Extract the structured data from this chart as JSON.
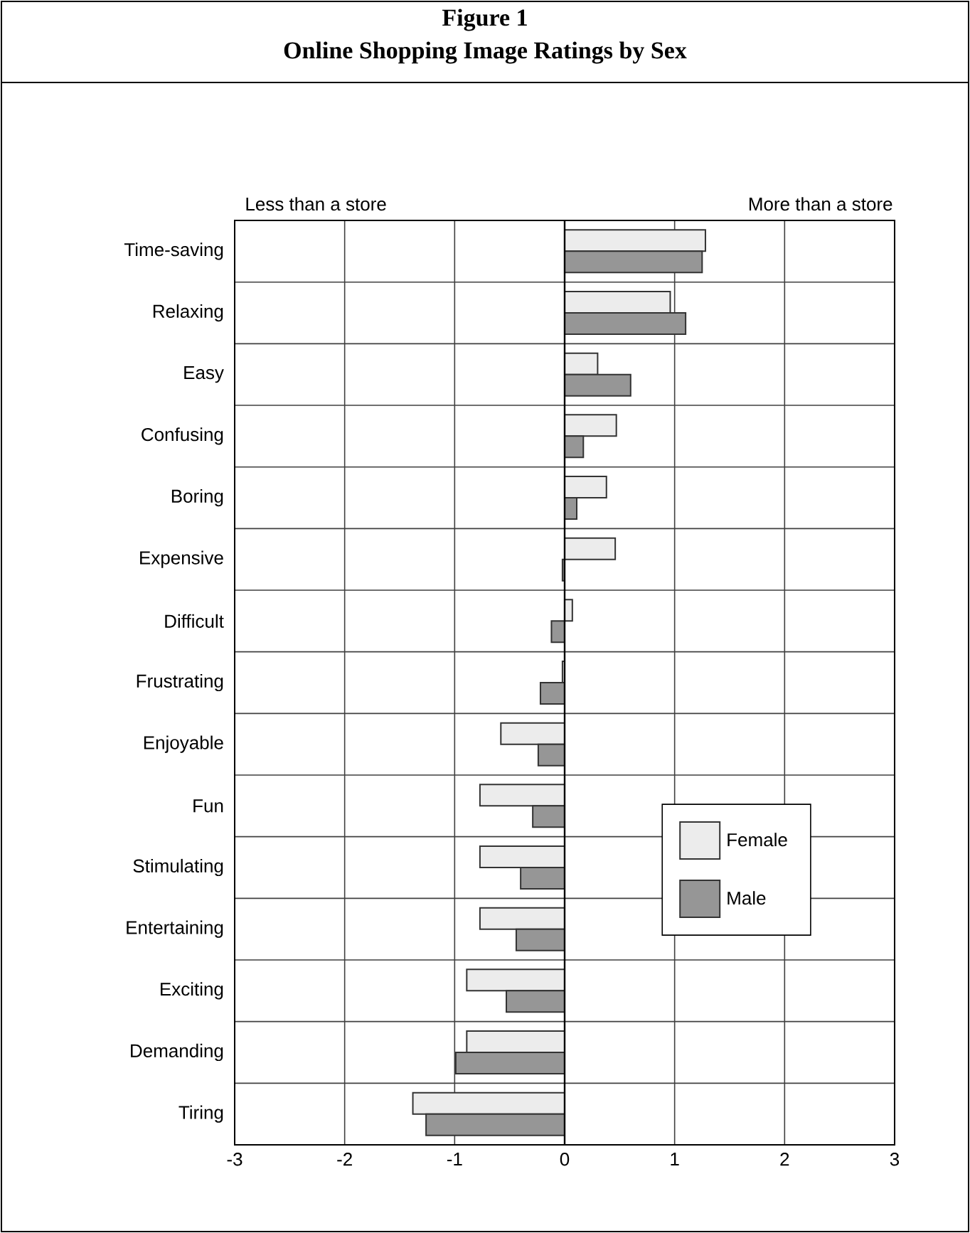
{
  "chart_data": {
    "type": "bar",
    "orientation": "horizontal",
    "title": "Figure 1",
    "subtitle": "Online Shopping Image Ratings by Sex",
    "annotations": [
      "Less than a store",
      "More than a store"
    ],
    "categories": [
      "Time-saving",
      "Relaxing",
      "Easy",
      "Confusing",
      "Boring",
      "Expensive",
      "Difficult",
      "Frustrating",
      "Enjoyable",
      "Fun",
      "Stimulating",
      "Entertaining",
      "Exciting",
      "Demanding",
      "Tiring"
    ],
    "series": [
      {
        "name": "Female",
        "color": "#ececec",
        "values": [
          1.28,
          0.96,
          0.3,
          0.47,
          0.38,
          0.46,
          0.07,
          -0.02,
          -0.58,
          -0.77,
          -0.77,
          -0.77,
          -0.89,
          -0.89,
          -1.38
        ]
      },
      {
        "name": "Male",
        "color": "#969696",
        "values": [
          1.25,
          1.1,
          0.6,
          0.17,
          0.11,
          -0.02,
          -0.12,
          -0.22,
          -0.24,
          -0.29,
          -0.4,
          -0.44,
          -0.53,
          -0.99,
          -1.26
        ]
      }
    ],
    "xlim": [
      -3,
      3
    ],
    "xticks": [
      -3,
      -2,
      -1,
      0,
      1,
      2,
      3
    ],
    "grid": true,
    "legend": "right"
  }
}
